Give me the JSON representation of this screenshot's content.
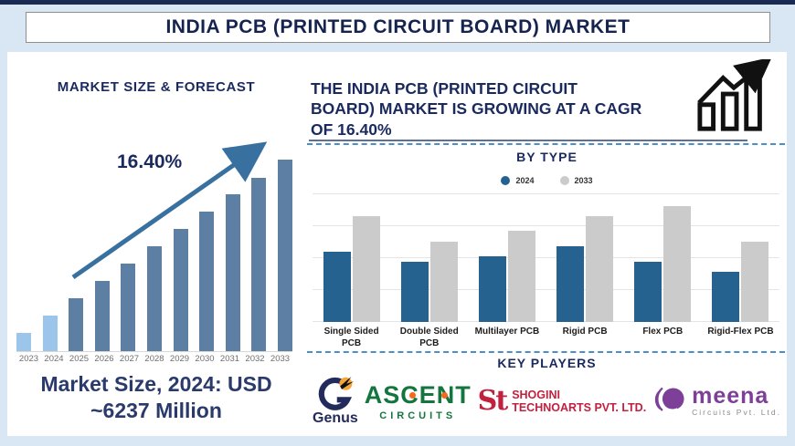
{
  "title": "INDIA PCB (PRINTED CIRCUIT BOARD) MARKET",
  "left_panel": {
    "heading": "MARKET SIZE & FORECAST",
    "cagr_label": "16.40%",
    "market_size_text": "Market Size, 2024: USD\n~6237 Million"
  },
  "right_panel": {
    "headline": "THE INDIA PCB (PRINTED CIRCUIT\nBOARD) MARKET IS GROWING AT A CAGR\nOF 16.40%",
    "by_type_title": "BY TYPE",
    "legend": [
      {
        "label": "2024",
        "color": "#26628f"
      },
      {
        "label": "2033",
        "color": "#cbcbcb"
      }
    ],
    "key_players_title": "KEY PLAYERS",
    "key_players": [
      {
        "name": "Genus",
        "wordmark": "Genus"
      },
      {
        "name": "Ascent Circuits",
        "wordmark": "ASCENT",
        "subtext": "CIRCUITS"
      },
      {
        "name": "Shogini Technoarts",
        "monogram": "St",
        "line1": "SHOGINI",
        "line2": "TECHNOARTS PVT. LTD."
      },
      {
        "name": "Meena Circuits",
        "wordmark": "meena",
        "subtext": "Circuits Pvt. Ltd."
      }
    ]
  },
  "chart_data": [
    {
      "type": "bar",
      "title": "MARKET SIZE & FORECAST",
      "subtitle_annotation": "16.40% CAGR growth arrow",
      "categories": [
        "2023",
        "2024",
        "2025",
        "2026",
        "2027",
        "2028",
        "2029",
        "2030",
        "2031",
        "2032",
        "2033"
      ],
      "values_relative": [
        9.5,
        18.6,
        27.6,
        36.7,
        45.7,
        54.8,
        63.8,
        72.9,
        81.9,
        90.5,
        100
      ],
      "value_scale": "relative height, percent of 2033 bar (no axis labels shown)",
      "known_value": "2024 = USD ~6237 Million",
      "bar_color": "#5d7fa4",
      "highlight_years": [
        "2023",
        "2024"
      ],
      "highlight_color": "#9cc5ec",
      "xlabel": "",
      "ylabel": "",
      "grid": false,
      "legend_position": "none"
    },
    {
      "type": "bar",
      "title": "BY TYPE",
      "categories": [
        "Single Sided PCB",
        "Double Sided PCB",
        "Multilayer PCB",
        "Rigid PCB",
        "Flex PCB",
        "Rigid-Flex PCB"
      ],
      "series": [
        {
          "name": "2024",
          "color": "#26628f",
          "values_relative": [
            61,
            52,
            57,
            65,
            52,
            43
          ]
        },
        {
          "name": "2033",
          "color": "#cbcbcb",
          "values_relative": [
            91,
            69,
            79,
            91,
            100,
            69
          ]
        }
      ],
      "value_scale": "relative height, percent of tallest bar (Flex PCB 2033); no axis labels shown",
      "xlabel": "",
      "ylabel": "",
      "grid": true,
      "legend_position": "top-center"
    }
  ],
  "colors": {
    "navy_text": "#1a2a5e",
    "top_bar": "#1b2a55",
    "background": "#d9e7f5",
    "arrow_blue": "#38719f",
    "forecast_bar": "#5d7fa4",
    "forecast_bar_highlight": "#9cc5ec",
    "bytype_2024": "#26628f",
    "bytype_2033": "#cbcbcb",
    "dashed_divider": "#4a8fc8",
    "ascent_green": "#14753f",
    "shogini_crimson": "#c2203f",
    "meena_purple": "#7d3f98",
    "genus_navy": "#232a5c",
    "genus_orange": "#f6a63a"
  }
}
